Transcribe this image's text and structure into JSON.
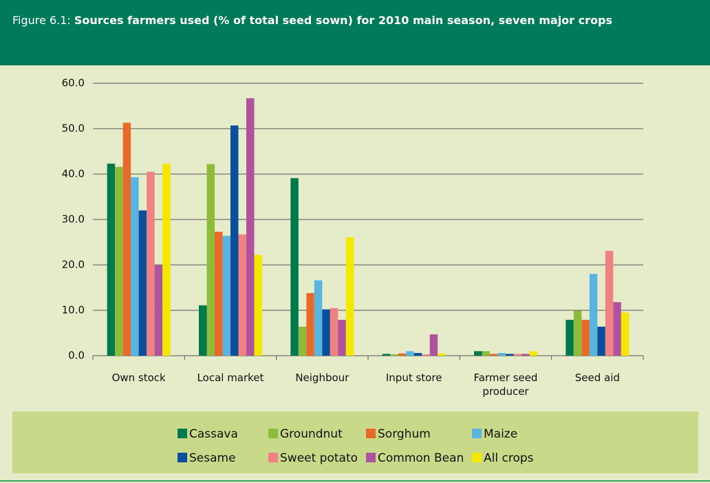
{
  "chart_data": {
    "type": "bar",
    "figure_label": "Figure 6.1:",
    "title": "Sources farmers used (% of total seed sown) for 2010 main season, seven major crops",
    "categories": [
      "Own stock",
      "Local market",
      "Neighbour",
      "Input store",
      "Farmer seed producer",
      "Seed aid"
    ],
    "series": [
      {
        "name": "Cassava",
        "color": "#007a4d",
        "values": [
          42.3,
          11.1,
          39.1,
          0.4,
          1.0,
          7.9
        ]
      },
      {
        "name": "Groundnut",
        "color": "#8dbb3c",
        "values": [
          41.6,
          42.2,
          6.4,
          0.3,
          1.0,
          9.9
        ]
      },
      {
        "name": "Sorghum",
        "color": "#e8692a",
        "values": [
          51.3,
          27.3,
          13.8,
          0.5,
          0.4,
          7.9
        ]
      },
      {
        "name": "Maize",
        "color": "#5ab4e0",
        "values": [
          39.3,
          26.4,
          16.6,
          1.0,
          0.6,
          18.0
        ]
      },
      {
        "name": "Sesame",
        "color": "#0b4f9c",
        "values": [
          32.0,
          50.7,
          10.2,
          0.6,
          0.4,
          6.4
        ]
      },
      {
        "name": "Sweet potato",
        "color": "#f08282",
        "values": [
          40.5,
          26.7,
          10.5,
          0.3,
          0.4,
          23.1
        ]
      },
      {
        "name": "Common Bean",
        "color": "#b0529e",
        "values": [
          19.9,
          56.7,
          7.9,
          4.7,
          0.4,
          11.8
        ]
      },
      {
        "name": "All crops",
        "color": "#f5e800",
        "values": [
          42.3,
          22.2,
          26.1,
          0.5,
          1.0,
          9.5
        ]
      }
    ],
    "ylim": [
      0,
      60
    ],
    "yticks": [
      {
        "value": 0,
        "label": "0.0"
      },
      {
        "value": 10,
        "label": "10.0"
      },
      {
        "value": 20,
        "label": "20.0"
      },
      {
        "value": 30,
        "label": "30.0"
      },
      {
        "value": 40,
        "label": "40.0"
      },
      {
        "value": 50,
        "label": "50.0"
      },
      {
        "value": 60,
        "label": "60.0"
      }
    ],
    "grid": true,
    "legend_position": "bottom"
  }
}
